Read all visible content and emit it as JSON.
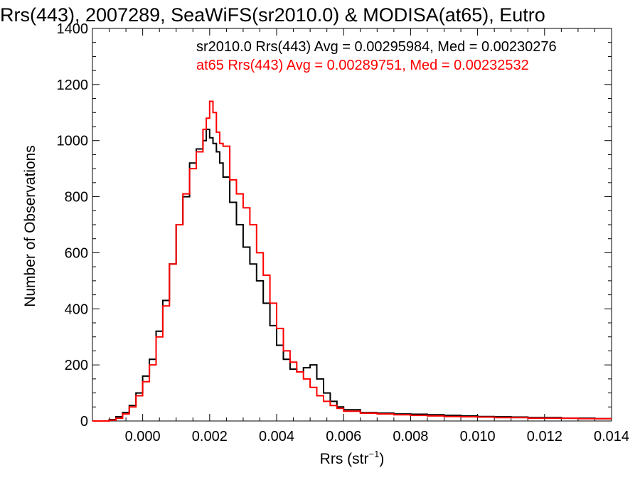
{
  "chart_data": {
    "type": "line",
    "title": "Rrs(443), 2007289, SeaWiFS(sr2010.0) & MODISA(at65), Eutro",
    "xlabel": "Rrs (str",
    "xlabel_sup": "−1",
    "xlabel_close": ")",
    "ylabel": "Number of Observations",
    "xlim": [
      -0.0015,
      0.014
    ],
    "ylim": [
      0,
      1400
    ],
    "xticks": [
      0.0,
      0.002,
      0.004,
      0.006,
      0.008,
      0.01,
      0.012,
      0.014
    ],
    "xtick_labels": [
      "0.000",
      "0.002",
      "0.004",
      "0.006",
      "0.008",
      "0.010",
      "0.012",
      "0.014"
    ],
    "yticks": [
      0,
      200,
      400,
      600,
      800,
      1000,
      1200,
      1400
    ],
    "ytick_labels": [
      "0",
      "200",
      "400",
      "600",
      "800",
      "1000",
      "1200",
      "1400"
    ],
    "legend_position": "top-right",
    "series": [
      {
        "name": "sr2010.0 Rrs(443) Avg = 0.00295984, Med = 0.00230276",
        "color": "#000000",
        "x": [
          -0.0015,
          -0.001,
          -0.0008,
          -0.0006,
          -0.0004,
          -0.0002,
          0.0,
          0.0002,
          0.0004,
          0.0006,
          0.0008,
          0.001,
          0.0012,
          0.0014,
          0.0016,
          0.0018,
          0.0019,
          0.002,
          0.0021,
          0.0022,
          0.0023,
          0.0024,
          0.0026,
          0.0028,
          0.003,
          0.0032,
          0.0034,
          0.0036,
          0.0038,
          0.004,
          0.0042,
          0.0044,
          0.0046,
          0.0048,
          0.005,
          0.0052,
          0.0054,
          0.0056,
          0.0058,
          0.006,
          0.0065,
          0.007,
          0.0075,
          0.008,
          0.0085,
          0.009,
          0.0095,
          0.01,
          0.0105,
          0.011,
          0.0115,
          0.012,
          0.0125,
          0.013,
          0.0135,
          0.014
        ],
        "y": [
          0,
          5,
          15,
          30,
          55,
          100,
          160,
          220,
          320,
          430,
          560,
          700,
          800,
          920,
          970,
          1000,
          1040,
          1010,
          990,
          960,
          920,
          870,
          780,
          700,
          620,
          560,
          500,
          420,
          340,
          270,
          220,
          185,
          175,
          190,
          200,
          150,
          100,
          70,
          50,
          40,
          30,
          28,
          25,
          24,
          22,
          20,
          18,
          16,
          15,
          14,
          12,
          12,
          10,
          10,
          8,
          8
        ]
      },
      {
        "name": "at65 Rrs(443) Avg = 0.00289751, Med = 0.00232532",
        "color": "#ff0000",
        "x": [
          -0.0015,
          -0.001,
          -0.0008,
          -0.0006,
          -0.0004,
          -0.0002,
          0.0,
          0.0002,
          0.0004,
          0.0006,
          0.0008,
          0.001,
          0.0012,
          0.0014,
          0.0016,
          0.0018,
          0.0019,
          0.002,
          0.0021,
          0.0022,
          0.0023,
          0.0024,
          0.0026,
          0.0028,
          0.003,
          0.0032,
          0.0034,
          0.0036,
          0.0038,
          0.004,
          0.0042,
          0.0044,
          0.0046,
          0.0048,
          0.005,
          0.0052,
          0.0054,
          0.0056,
          0.0058,
          0.006,
          0.0065,
          0.007,
          0.0075,
          0.008,
          0.0085,
          0.009,
          0.0095,
          0.01,
          0.0105,
          0.011,
          0.0115,
          0.012,
          0.0125,
          0.013,
          0.0135,
          0.014
        ],
        "y": [
          0,
          3,
          10,
          25,
          50,
          90,
          140,
          200,
          300,
          410,
          560,
          700,
          810,
          900,
          960,
          1040,
          1080,
          1140,
          1100,
          1030,
          990,
          980,
          860,
          810,
          760,
          700,
          600,
          520,
          420,
          330,
          250,
          210,
          175,
          150,
          120,
          90,
          70,
          55,
          45,
          35,
          28,
          25,
          22,
          20,
          18,
          16,
          15,
          14,
          12,
          12,
          10,
          10,
          10,
          8,
          8,
          8
        ]
      }
    ]
  }
}
